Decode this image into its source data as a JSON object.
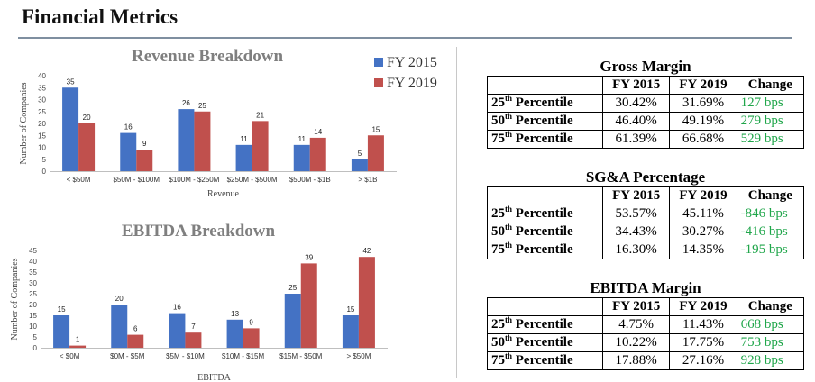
{
  "page": {
    "title": "Financial Metrics"
  },
  "legend": {
    "fy2015": "FY 2015",
    "fy2019": "FY 2019"
  },
  "colors": {
    "fy2015": "#4472c4",
    "fy2019": "#c0504d",
    "positive_change": "#1fa64a"
  },
  "chart_data": [
    {
      "type": "bar",
      "title": "Revenue Breakdown",
      "xlabel": "Revenue",
      "ylabel": "Number of Companies",
      "ylim": [
        0,
        40
      ],
      "yticks": [
        0,
        5,
        10,
        15,
        20,
        25,
        30,
        35,
        40
      ],
      "categories": [
        "< $50M",
        "$50M - $100M",
        "$100M - $250M",
        "$250M - $500M",
        "$500M - $1B",
        "> $1B"
      ],
      "series": [
        {
          "name": "FY 2015",
          "values": [
            35,
            16,
            26,
            11,
            11,
            5
          ]
        },
        {
          "name": "FY 2019",
          "values": [
            20,
            9,
            25,
            21,
            14,
            15
          ]
        }
      ],
      "legend_position": "top-right",
      "grid": false
    },
    {
      "type": "bar",
      "title": "EBITDA Breakdown",
      "xlabel": "EBITDA",
      "ylabel": "Number of Companies",
      "ylim": [
        0,
        45
      ],
      "yticks": [
        0,
        5,
        10,
        15,
        20,
        25,
        30,
        35,
        40,
        45
      ],
      "categories": [
        "< $0M",
        "$0M - $5M",
        "$5M - $10M",
        "$10M - $15M",
        "$15M - $50M",
        "> $50M"
      ],
      "series": [
        {
          "name": "FY 2015",
          "values": [
            15,
            20,
            16,
            13,
            25,
            15
          ]
        },
        {
          "name": "FY 2019",
          "values": [
            1,
            6,
            7,
            9,
            39,
            42
          ]
        }
      ],
      "grid": false
    },
    {
      "type": "table",
      "title": "Gross Margin",
      "columns": [
        "",
        "FY 2015",
        "FY 2019",
        "Change"
      ],
      "rows": [
        {
          "n": "25",
          "sfx": "th",
          "label": "Percentile",
          "fy2015": "30.42%",
          "fy2019": "31.69%",
          "change": "127 bps"
        },
        {
          "n": "50",
          "sfx": "th",
          "label": "Percentile",
          "fy2015": "46.40%",
          "fy2019": "49.19%",
          "change": "279 bps"
        },
        {
          "n": "75",
          "sfx": "th",
          "label": "Percentile",
          "fy2015": "61.39%",
          "fy2019": "66.68%",
          "change": "529 bps"
        }
      ]
    },
    {
      "type": "table",
      "title": "SG&A Percentage",
      "columns": [
        "",
        "FY 2015",
        "FY 2019",
        "Change"
      ],
      "rows": [
        {
          "n": "25",
          "sfx": "th",
          "label": "Percentile",
          "fy2015": "53.57%",
          "fy2019": "45.11%",
          "change": "-846 bps"
        },
        {
          "n": "50",
          "sfx": "th",
          "label": "Percentile",
          "fy2015": "34.43%",
          "fy2019": "30.27%",
          "change": "-416 bps"
        },
        {
          "n": "75",
          "sfx": "th",
          "label": "Percentile",
          "fy2015": "16.30%",
          "fy2019": "14.35%",
          "change": "-195 bps"
        }
      ]
    },
    {
      "type": "table",
      "title": "EBITDA Margin",
      "columns": [
        "",
        "FY 2015",
        "FY 2019",
        "Change"
      ],
      "rows": [
        {
          "n": "25",
          "sfx": "th",
          "label": "Percentile",
          "fy2015": "4.75%",
          "fy2019": "11.43%",
          "change": "668 bps"
        },
        {
          "n": "50",
          "sfx": "th",
          "label": "Percentile",
          "fy2015": "10.22%",
          "fy2019": "17.75%",
          "change": "753 bps"
        },
        {
          "n": "75",
          "sfx": "th",
          "label": "Percentile",
          "fy2015": "17.88%",
          "fy2019": "27.16%",
          "change": "928 bps"
        }
      ]
    }
  ]
}
